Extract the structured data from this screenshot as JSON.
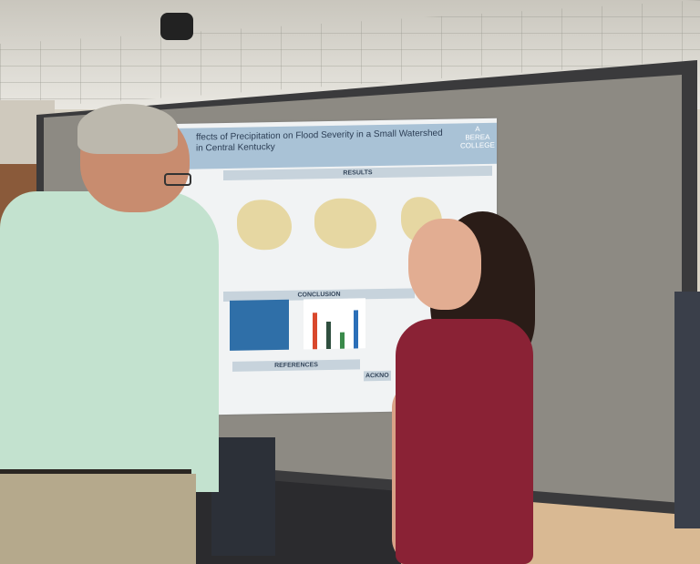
{
  "poster": {
    "title": "ffects of Precipitation on Flood Severity in a Small Watershed in Central Kentucky",
    "logo": "A BEREA COLLEGE",
    "sections": {
      "results": "RESULTS",
      "conclusion": "CONCLUSION",
      "references": "REFERENCES",
      "acknowledgements": "ACKNO"
    }
  },
  "colors": {
    "poster_header": "#a9c2d6",
    "board": "#8d8a83",
    "shirt": "#c3e2cf",
    "top": "#8a2235"
  }
}
